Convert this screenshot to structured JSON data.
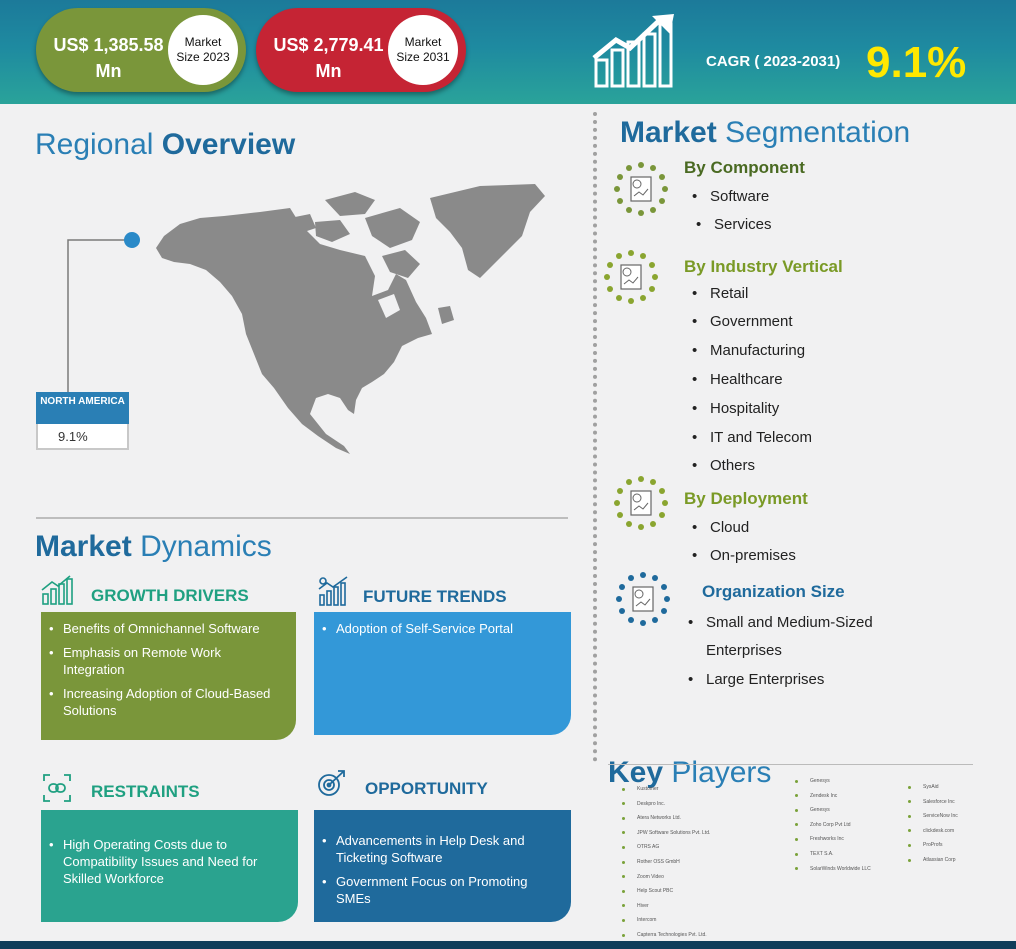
{
  "header": {
    "market_2023": {
      "amount": "US$ 1,385.58 Mn",
      "label_line1": "Market",
      "label_line2": "Size 2023"
    },
    "market_2031": {
      "amount": "US$ 2,779.41 Mn",
      "label_line1": "Market",
      "label_line2": "Size 2031"
    },
    "cagr_label": "CAGR ( 2023-2031)",
    "cagr_value": "9.1%"
  },
  "regional": {
    "title_plain": "Regional",
    "title_bold": "Overview",
    "region_name": "NORTH AMERICA",
    "region_value": "9.1%"
  },
  "segmentation": {
    "title_bold": "Market",
    "title_plain": "Segmentation",
    "groups": [
      {
        "title": "By Component",
        "items": [
          "Software",
          "Services"
        ]
      },
      {
        "title": "By Industry Vertical",
        "items": [
          "Retail",
          "Government",
          "Manufacturing",
          "Healthcare",
          "Hospitality",
          "IT and Telecom",
          "Others"
        ]
      },
      {
        "title": "By Deployment",
        "items": [
          "Cloud",
          "On-premises"
        ]
      },
      {
        "title": "Organization Size",
        "items": [
          "Small and Medium-Sized",
          "Enterprises",
          "Large Enterprises"
        ]
      }
    ],
    "colors": {
      "green": "#7a963a",
      "olive": "#8aa530",
      "blue": "#1f6a9c"
    }
  },
  "dynamics": {
    "title_bold": "Market",
    "title_plain": "Dynamics",
    "growth_drivers": {
      "title": "GROWTH DRIVERS",
      "items": [
        "Benefits of Omnichannel Software",
        "Emphasis on Remote Work Integration",
        "Increasing Adoption of Cloud-Based Solutions"
      ]
    },
    "future_trends": {
      "title": "FUTURE TRENDS",
      "items": [
        "Adoption of Self-Service Portal"
      ]
    },
    "restraints": {
      "title": "RESTRAINTS",
      "items": [
        "High Operating Costs due to Compatibility  Issues and Need for Skilled Workforce"
      ]
    },
    "opportunity": {
      "title": "OPPORTUNITY",
      "items": [
        "Advancements in Help Desk and Ticketing Software",
        "Government Focus on Promoting SMEs"
      ]
    }
  },
  "key_players": {
    "title_bold": "Key",
    "title_plain": "Players",
    "col1": [
      "Kustomer",
      "Deskpro Inc.",
      "Atera Networks Ltd.",
      "JPW Software Solutions Pvt. Ltd.",
      "OTRS AG",
      "Rother OSS GmbH",
      "Zoom Video",
      "Help Scout PBC",
      "Hiver",
      "Intercom",
      "Capterra Technologies Pvt. Ltd."
    ],
    "col2": [
      "Genesys",
      "Zendesk Inc",
      "Genesys",
      "Zoho Corp Pvt Ltd",
      "Freshworks Inc",
      "TEXT S.A.",
      "SolarWinds Worldwide LLC"
    ],
    "col3": [
      "SysAid",
      "Salesforce Inc",
      "ServiceNow Inc",
      "clickdesk.com",
      "ProProfs",
      "Atlassian Corp"
    ]
  }
}
